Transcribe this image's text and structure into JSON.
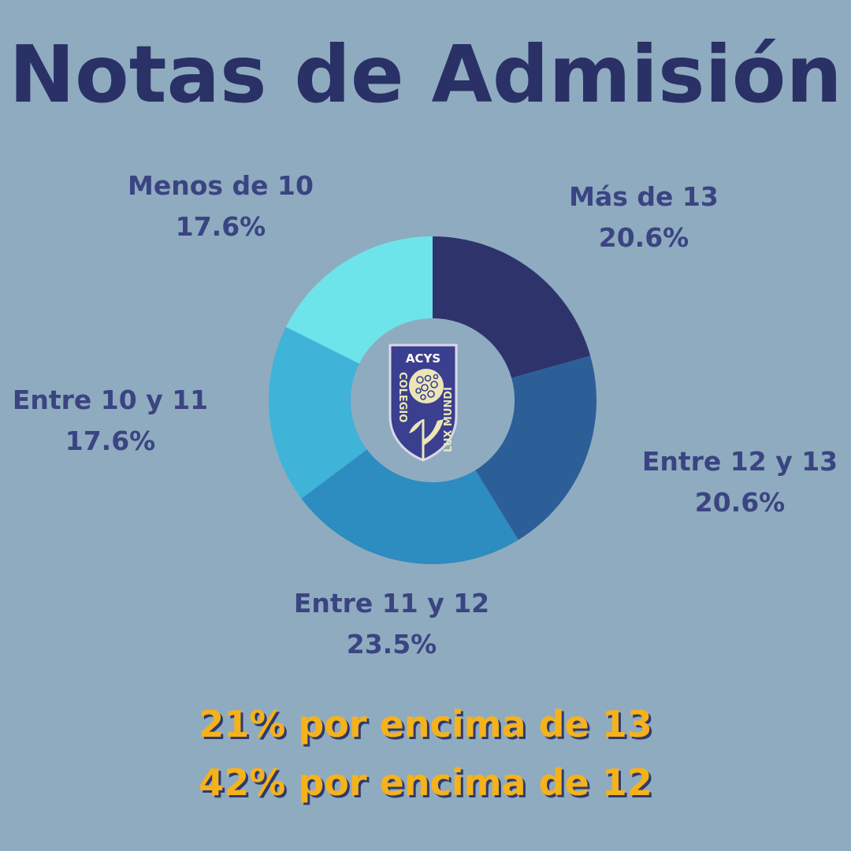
{
  "title": "Notas de Admisión",
  "chart_data": {
    "type": "pie",
    "style": "donut",
    "title": "Notas de Admisión",
    "slices": [
      {
        "label": "Más de 13",
        "value": 20.6,
        "display": "20.6%",
        "color": "#2e346b"
      },
      {
        "label": "Entre 12 y 13",
        "value": 20.6,
        "display": "20.6%",
        "color": "#2c5f98"
      },
      {
        "label": "Entre 11 y 12",
        "value": 23.5,
        "display": "23.5%",
        "color": "#2d8cc0"
      },
      {
        "label": "Entre 10 y 11",
        "value": 17.6,
        "display": "17.6%",
        "color": "#3fb3d8"
      },
      {
        "label": "Menos de 10",
        "value": 17.6,
        "display": "17.6%",
        "color": "#6de4ea"
      }
    ]
  },
  "summary": {
    "line1": "21% por encima de 13",
    "line2": "42% por encima de 12"
  },
  "logo": {
    "top_text": "ACYS",
    "left_text": "COLEGIO",
    "right_text": "LUX MUNDI"
  },
  "colors": {
    "background": "#8fabbf",
    "title": "#2a3166",
    "label": "#3b4482",
    "summary": "#f6b21b",
    "summary_shadow": "#2f3a6e"
  }
}
